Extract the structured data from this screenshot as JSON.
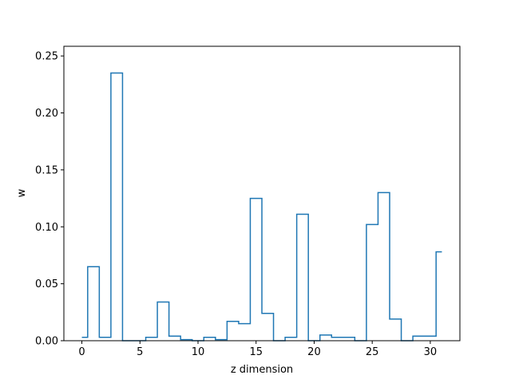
{
  "chart_data": {
    "type": "line",
    "style": "step-mid",
    "title": "",
    "xlabel": "z dimension",
    "ylabel": "w",
    "xlim": [
      -1.55,
      32.55
    ],
    "ylim": [
      0,
      0.2585
    ],
    "grid": false,
    "line_color": "#1f77b4",
    "x_ticks": [
      0,
      5,
      10,
      15,
      20,
      25,
      30
    ],
    "x_tick_labels": [
      "0",
      "5",
      "10",
      "15",
      "20",
      "25",
      "30"
    ],
    "y_ticks": [
      0.0,
      0.05,
      0.1,
      0.15,
      0.2,
      0.25
    ],
    "y_tick_labels": [
      "0.00",
      "0.05",
      "0.10",
      "0.15",
      "0.20",
      "0.25"
    ],
    "x": [
      0,
      1,
      2,
      3,
      4,
      5,
      6,
      7,
      8,
      9,
      10,
      11,
      12,
      13,
      14,
      15,
      16,
      17,
      18,
      19,
      20,
      21,
      22,
      23,
      24,
      25,
      26,
      27,
      28,
      29,
      30,
      31
    ],
    "values": [
      0.003,
      0.065,
      0.003,
      0.235,
      0.0,
      0.0,
      0.003,
      0.034,
      0.004,
      0.001,
      0.0,
      0.003,
      0.001,
      0.017,
      0.015,
      0.125,
      0.024,
      0.0,
      0.003,
      0.111,
      0.0,
      0.005,
      0.003,
      0.003,
      0.0,
      0.102,
      0.13,
      0.019,
      0.0,
      0.004,
      0.004,
      0.078
    ]
  }
}
